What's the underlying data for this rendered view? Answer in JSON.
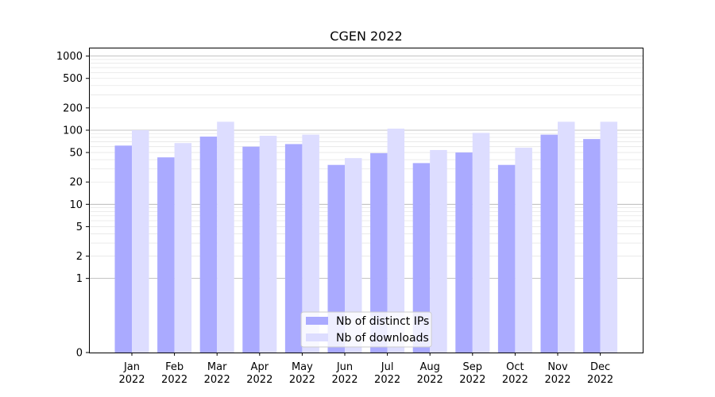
{
  "chart_data": {
    "type": "bar",
    "title": "CGEN 2022",
    "xlabel": "",
    "ylabel": "",
    "yscale": "symlog",
    "ylim": [
      0,
      1300
    ],
    "y_ticks": [
      {
        "value": 0,
        "label": "0"
      },
      {
        "value": 1,
        "label": "1"
      },
      {
        "value": 2,
        "label": "2"
      },
      {
        "value": 5,
        "label": "5"
      },
      {
        "value": 10,
        "label": "10"
      },
      {
        "value": 20,
        "label": "20"
      },
      {
        "value": 50,
        "label": "50"
      },
      {
        "value": 100,
        "label": "100"
      },
      {
        "value": 200,
        "label": "200"
      },
      {
        "value": 500,
        "label": "500"
      },
      {
        "value": 1000,
        "label": "1000"
      }
    ],
    "categories": [
      {
        "month": "Jan",
        "year": "2022"
      },
      {
        "month": "Feb",
        "year": "2022"
      },
      {
        "month": "Mar",
        "year": "2022"
      },
      {
        "month": "Apr",
        "year": "2022"
      },
      {
        "month": "May",
        "year": "2022"
      },
      {
        "month": "Jun",
        "year": "2022"
      },
      {
        "month": "Jul",
        "year": "2022"
      },
      {
        "month": "Aug",
        "year": "2022"
      },
      {
        "month": "Sep",
        "year": "2022"
      },
      {
        "month": "Oct",
        "year": "2022"
      },
      {
        "month": "Nov",
        "year": "2022"
      },
      {
        "month": "Dec",
        "year": "2022"
      }
    ],
    "series": [
      {
        "name": "Nb of distinct IPs",
        "color": "#aaaaff",
        "values": [
          62,
          43,
          82,
          60,
          65,
          34,
          49,
          36,
          50,
          34,
          87,
          76
        ]
      },
      {
        "name": "Nb of downloads",
        "color": "#ddddff",
        "values": [
          100,
          67,
          130,
          84,
          87,
          42,
          105,
          54,
          92,
          58,
          130,
          130
        ]
      }
    ],
    "grid": true,
    "legend_position": "bottom-center"
  }
}
